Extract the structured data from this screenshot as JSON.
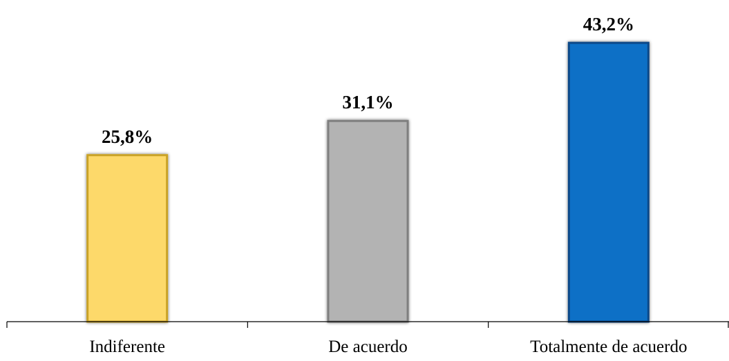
{
  "chart_data": {
    "type": "bar",
    "categories": [
      "Indiferente",
      "De acuerdo",
      "Totalmente de acuerdo"
    ],
    "values": [
      25.8,
      31.1,
      43.2
    ],
    "value_labels": [
      "25,8%",
      "31,1%",
      "43,2%"
    ],
    "colors": [
      "#FDD96B",
      "#B3B3B3",
      "#0F6FC6"
    ],
    "border_colors": [
      "#C9A227",
      "#7F7F7F",
      "#0B4A88"
    ],
    "title": "",
    "xlabel": "",
    "ylabel": "",
    "ylim": [
      0,
      50
    ],
    "grid": false,
    "legend": "none"
  }
}
